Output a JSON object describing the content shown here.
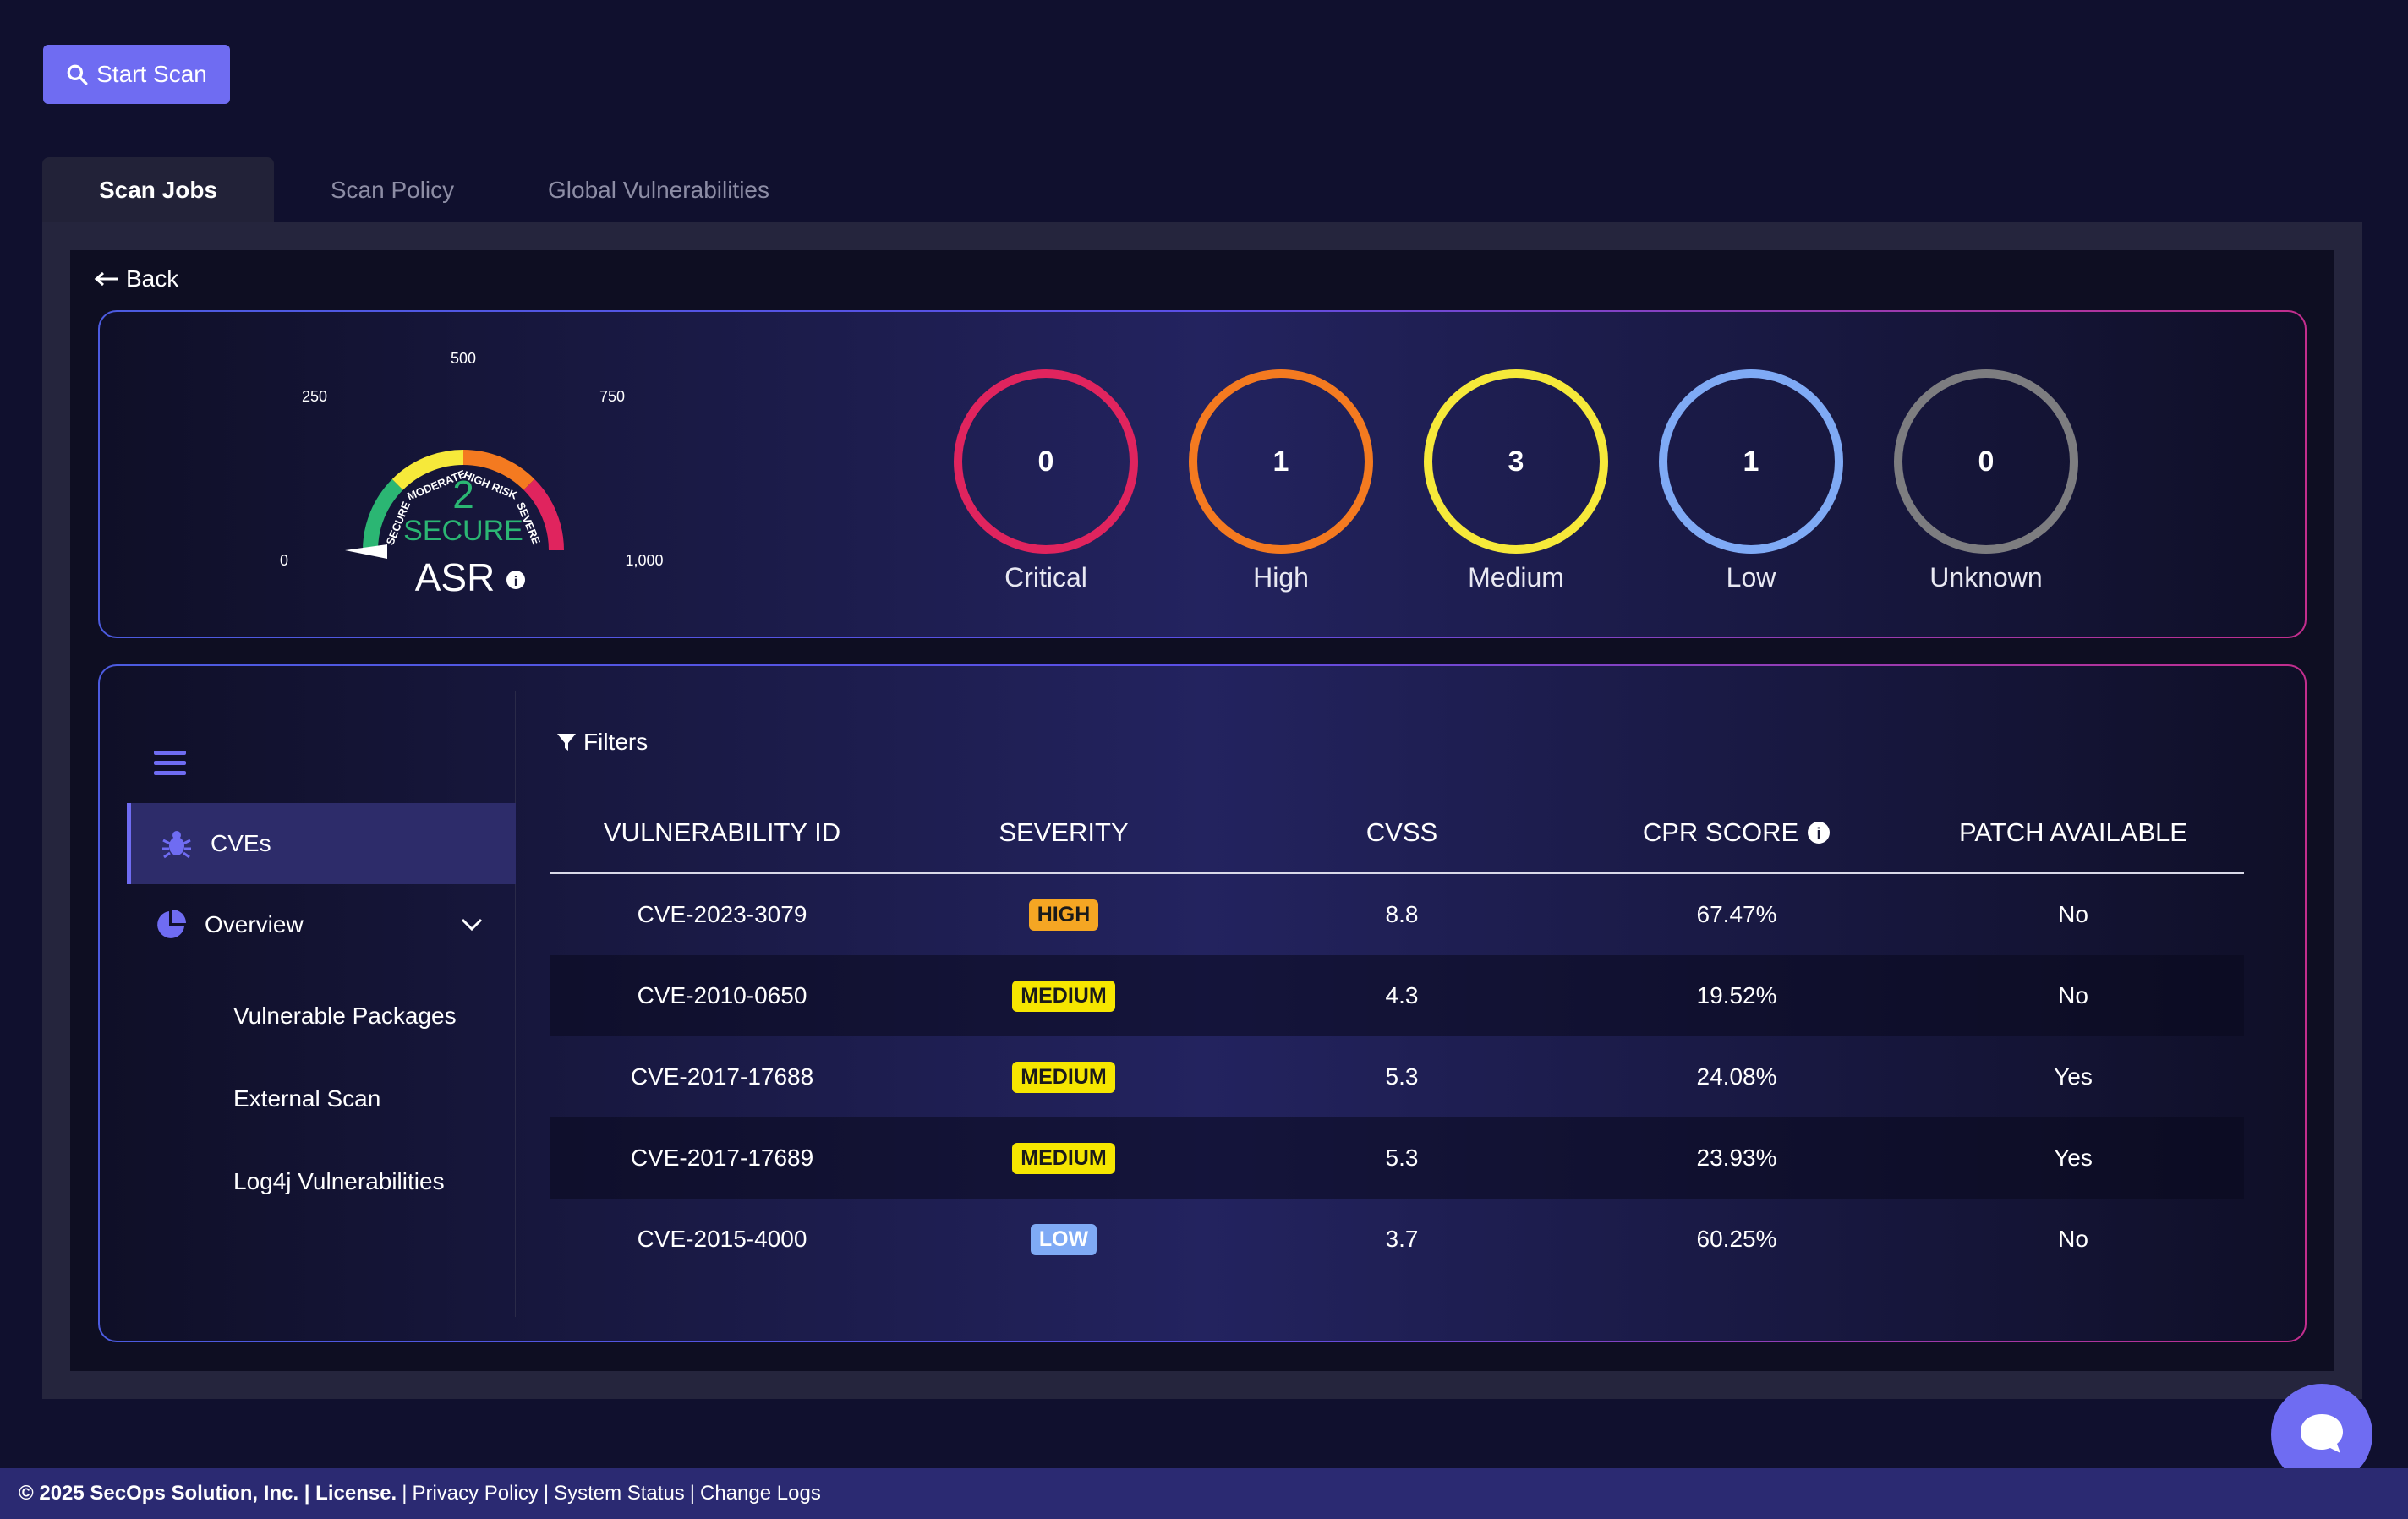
{
  "toolbar": {
    "start_scan_label": "Start Scan"
  },
  "tabs": [
    {
      "label": "Scan Jobs",
      "active": true
    },
    {
      "label": "Scan Policy",
      "active": false
    },
    {
      "label": "Global Vulnerabilities",
      "active": false
    }
  ],
  "back_label": "Back",
  "gauge": {
    "score": "2",
    "status": "SECURE",
    "label": "ASR",
    "ticks": [
      "0",
      "250",
      "500",
      "750",
      "1,000"
    ],
    "segments": [
      "SECURE",
      "MODERATE",
      "HIGH RISK",
      "SEVERE"
    ],
    "segment_colors": [
      "#2bb673",
      "#f6e93a",
      "#f47a20",
      "#e0245e"
    ],
    "value": 2,
    "max": 1000
  },
  "severity_counts": [
    {
      "label": "Critical",
      "count": "0",
      "color": "#e0245e"
    },
    {
      "label": "High",
      "count": "1",
      "color": "#f47a20"
    },
    {
      "label": "Medium",
      "count": "3",
      "color": "#f6e93a"
    },
    {
      "label": "Low",
      "count": "1",
      "color": "#7faaf5"
    },
    {
      "label": "Unknown",
      "count": "0",
      "color": "#7d7d80"
    }
  ],
  "sidebar": {
    "items": [
      {
        "label": "CVEs",
        "active": true
      },
      {
        "label": "Overview",
        "active": false
      }
    ],
    "subitems": [
      "Vulnerable Packages",
      "External Scan",
      "Log4j Vulnerabilities"
    ]
  },
  "filters_label": "Filters",
  "table": {
    "headers": [
      "VULNERABILITY ID",
      "SEVERITY",
      "CVSS",
      "CPR SCORE",
      "PATCH AVAILABLE"
    ],
    "rows": [
      {
        "id": "CVE-2023-3079",
        "severity": "HIGH",
        "cvss": "8.8",
        "cpr": "67.47%",
        "patch": "No"
      },
      {
        "id": "CVE-2010-0650",
        "severity": "MEDIUM",
        "cvss": "4.3",
        "cpr": "19.52%",
        "patch": "No"
      },
      {
        "id": "CVE-2017-17688",
        "severity": "MEDIUM",
        "cvss": "5.3",
        "cpr": "24.08%",
        "patch": "Yes"
      },
      {
        "id": "CVE-2017-17689",
        "severity": "MEDIUM",
        "cvss": "5.3",
        "cpr": "23.93%",
        "patch": "Yes"
      },
      {
        "id": "CVE-2015-4000",
        "severity": "LOW",
        "cvss": "3.7",
        "cpr": "60.25%",
        "patch": "No"
      }
    ],
    "badge_colors": {
      "HIGH": "#f5a623",
      "MEDIUM": "#f6e600",
      "LOW": "#7faaf5"
    }
  },
  "footer": {
    "copyright": "© 2025 SecOps Solution, Inc. | License.",
    "links": [
      "Privacy Policy",
      "System Status",
      "Change Logs"
    ]
  }
}
